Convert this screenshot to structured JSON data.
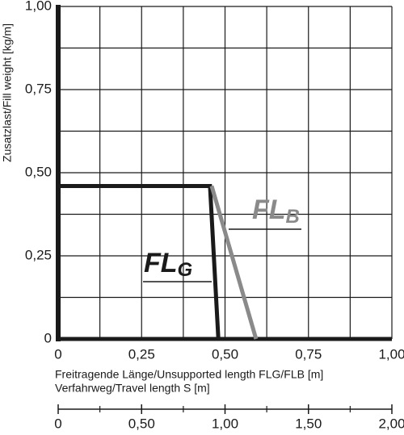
{
  "chart_data": {
    "type": "line",
    "ylabel": "Zusatzlast/Fill weight [kg/m]",
    "xlabel": "Freitragende Länge/Unsupported length FLG/FLB [m]",
    "x2label": "Verfahrweg/Travel length S [m]",
    "xlim": [
      0,
      1
    ],
    "ylim": [
      0,
      1
    ],
    "xticks": [
      {
        "value": 0,
        "label": "0"
      },
      {
        "value": 0.25,
        "label": "0,25"
      },
      {
        "value": 0.5,
        "label": "0,50"
      },
      {
        "value": 0.75,
        "label": "0,75"
      },
      {
        "value": 1,
        "label": "1,00"
      }
    ],
    "yticks": [
      {
        "value": 0,
        "label": "0"
      },
      {
        "value": 0.25,
        "label": "0,25"
      },
      {
        "value": 0.5,
        "label": "0,50"
      },
      {
        "value": 0.75,
        "label": "0,75"
      },
      {
        "value": 1,
        "label": "1,00"
      }
    ],
    "xminor": [
      0.125,
      0.375,
      0.625,
      0.875
    ],
    "yminor": [
      0.125,
      0.375,
      0.625,
      0.875
    ],
    "grid": true,
    "x2lim": [
      0,
      2
    ],
    "x2ticks": [
      {
        "value": 0,
        "label": "0"
      },
      {
        "value": 0.5,
        "label": "0,50"
      },
      {
        "value": 1,
        "label": "1,00"
      },
      {
        "value": 1.5,
        "label": "1,50"
      },
      {
        "value": 2,
        "label": "2,00"
      }
    ],
    "x2minor": [
      0.25,
      0.75,
      1.25,
      1.75
    ],
    "series": [
      {
        "name": "FL",
        "subscript": "G",
        "color": "#1a1a1a",
        "x": [
          0,
          0.455,
          0.48
        ],
        "values": [
          0.46,
          0.46,
          0
        ]
      },
      {
        "name": "FL",
        "subscript": "B",
        "color": "#8a8a8a",
        "x": [
          0.46,
          0.593
        ],
        "values": [
          0.46,
          0
        ]
      }
    ]
  }
}
